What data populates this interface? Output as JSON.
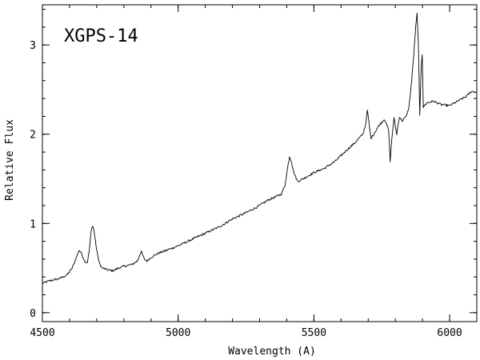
{
  "chart_data": {
    "type": "line",
    "title": "XGPS-14",
    "xlabel": "Wavelength (A)",
    "ylabel": "Relative Flux",
    "xlim": [
      4500,
      6100
    ],
    "ylim": [
      -0.1,
      3.45
    ],
    "x_ticks": [
      4500,
      5000,
      5500,
      6000
    ],
    "y_ticks": [
      0,
      1,
      2,
      3
    ],
    "x_minor_step": 100,
    "y_minor_step": 0.2,
    "grid": false,
    "legend": "none",
    "series": [
      {
        "color": "#000000",
        "points": [
          [
            4500,
            0.33
          ],
          [
            4530,
            0.36
          ],
          [
            4560,
            0.38
          ],
          [
            4590,
            0.42
          ],
          [
            4610,
            0.5
          ],
          [
            4625,
            0.62
          ],
          [
            4635,
            0.7
          ],
          [
            4645,
            0.66
          ],
          [
            4655,
            0.58
          ],
          [
            4665,
            0.56
          ],
          [
            4672,
            0.68
          ],
          [
            4680,
            0.92
          ],
          [
            4685,
            0.98
          ],
          [
            4690,
            0.92
          ],
          [
            4700,
            0.7
          ],
          [
            4710,
            0.55
          ],
          [
            4720,
            0.5
          ],
          [
            4740,
            0.48
          ],
          [
            4760,
            0.47
          ],
          [
            4780,
            0.5
          ],
          [
            4800,
            0.52
          ],
          [
            4830,
            0.54
          ],
          [
            4850,
            0.58
          ],
          [
            4860,
            0.66
          ],
          [
            4865,
            0.68
          ],
          [
            4875,
            0.6
          ],
          [
            4885,
            0.58
          ],
          [
            4900,
            0.62
          ],
          [
            4930,
            0.67
          ],
          [
            4950,
            0.69
          ],
          [
            5000,
            0.75
          ],
          [
            5050,
            0.82
          ],
          [
            5100,
            0.89
          ],
          [
            5150,
            0.96
          ],
          [
            5200,
            1.05
          ],
          [
            5250,
            1.12
          ],
          [
            5300,
            1.2
          ],
          [
            5330,
            1.26
          ],
          [
            5360,
            1.3
          ],
          [
            5380,
            1.33
          ],
          [
            5393,
            1.42
          ],
          [
            5403,
            1.62
          ],
          [
            5410,
            1.75
          ],
          [
            5417,
            1.7
          ],
          [
            5425,
            1.58
          ],
          [
            5440,
            1.47
          ],
          [
            5460,
            1.5
          ],
          [
            5500,
            1.57
          ],
          [
            5540,
            1.62
          ],
          [
            5580,
            1.7
          ],
          [
            5620,
            1.82
          ],
          [
            5650,
            1.9
          ],
          [
            5680,
            2.0
          ],
          [
            5690,
            2.1
          ],
          [
            5697,
            2.27
          ],
          [
            5703,
            2.12
          ],
          [
            5710,
            1.95
          ],
          [
            5720,
            2.0
          ],
          [
            5740,
            2.1
          ],
          [
            5760,
            2.17
          ],
          [
            5775,
            2.05
          ],
          [
            5781,
            1.7
          ],
          [
            5787,
            1.95
          ],
          [
            5795,
            2.18
          ],
          [
            5805,
            2.0
          ],
          [
            5815,
            2.2
          ],
          [
            5825,
            2.15
          ],
          [
            5840,
            2.2
          ],
          [
            5850,
            2.3
          ],
          [
            5860,
            2.6
          ],
          [
            5868,
            2.9
          ],
          [
            5875,
            3.2
          ],
          [
            5880,
            3.35
          ],
          [
            5885,
            3.0
          ],
          [
            5890,
            2.2
          ],
          [
            5895,
            2.75
          ],
          [
            5899,
            2.9
          ],
          [
            5903,
            2.3
          ],
          [
            5915,
            2.35
          ],
          [
            5940,
            2.37
          ],
          [
            5970,
            2.33
          ],
          [
            6000,
            2.32
          ],
          [
            6030,
            2.37
          ],
          [
            6060,
            2.42
          ],
          [
            6080,
            2.48
          ],
          [
            6100,
            2.47
          ]
        ]
      }
    ]
  }
}
